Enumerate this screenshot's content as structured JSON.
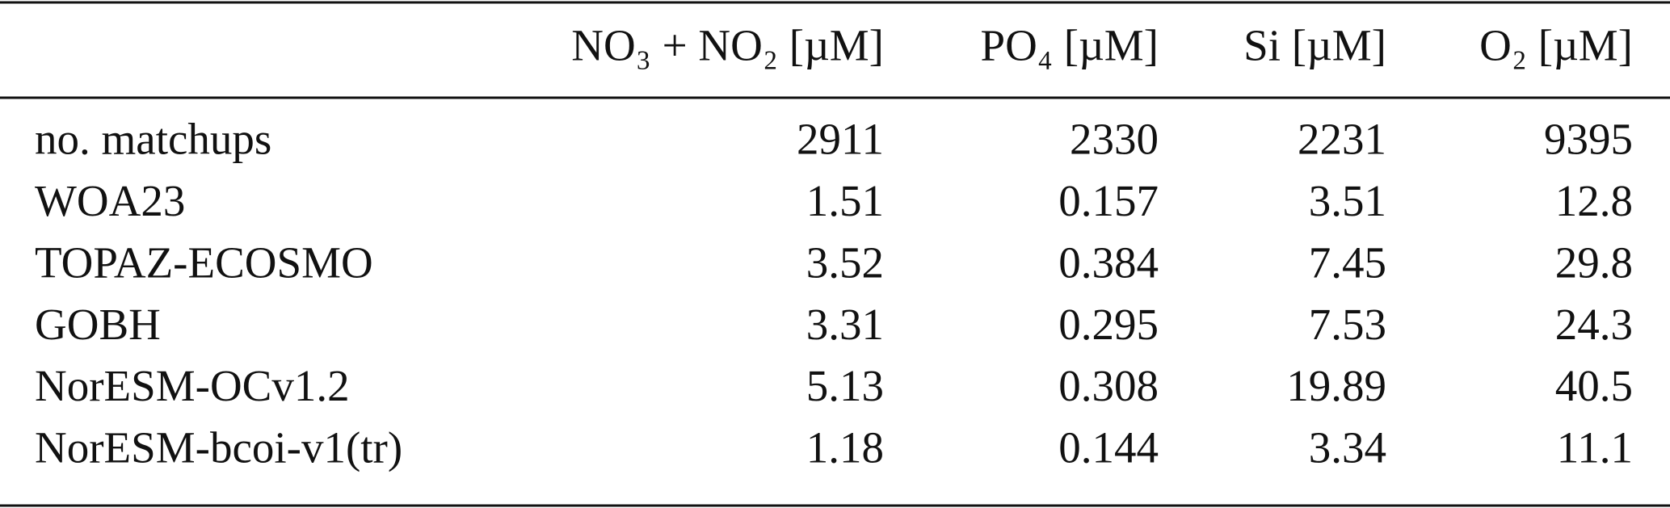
{
  "table": {
    "columns": [
      "NO₃ + NO₂ [µM]",
      "PO₄ [µM]",
      "Si [µM]",
      "O₂ [µM]"
    ],
    "rows": [
      {
        "label": "no. matchups",
        "values": [
          2911,
          2330,
          2231,
          9395
        ]
      },
      {
        "label": "WOA23",
        "values": [
          1.51,
          0.157,
          3.51,
          12.8
        ]
      },
      {
        "label": "TOPAZ-ECOSMO",
        "values": [
          3.52,
          0.384,
          7.45,
          29.8
        ]
      },
      {
        "label": "GOBH",
        "values": [
          3.31,
          0.295,
          7.53,
          24.3
        ]
      },
      {
        "label": "NorESM-OCv1.2",
        "values": [
          5.13,
          0.308,
          19.89,
          40.5
        ]
      },
      {
        "label": "NorESM-bcoi-v1(tr)",
        "values": [
          1.18,
          0.144,
          3.34,
          11.1
        ]
      }
    ]
  }
}
